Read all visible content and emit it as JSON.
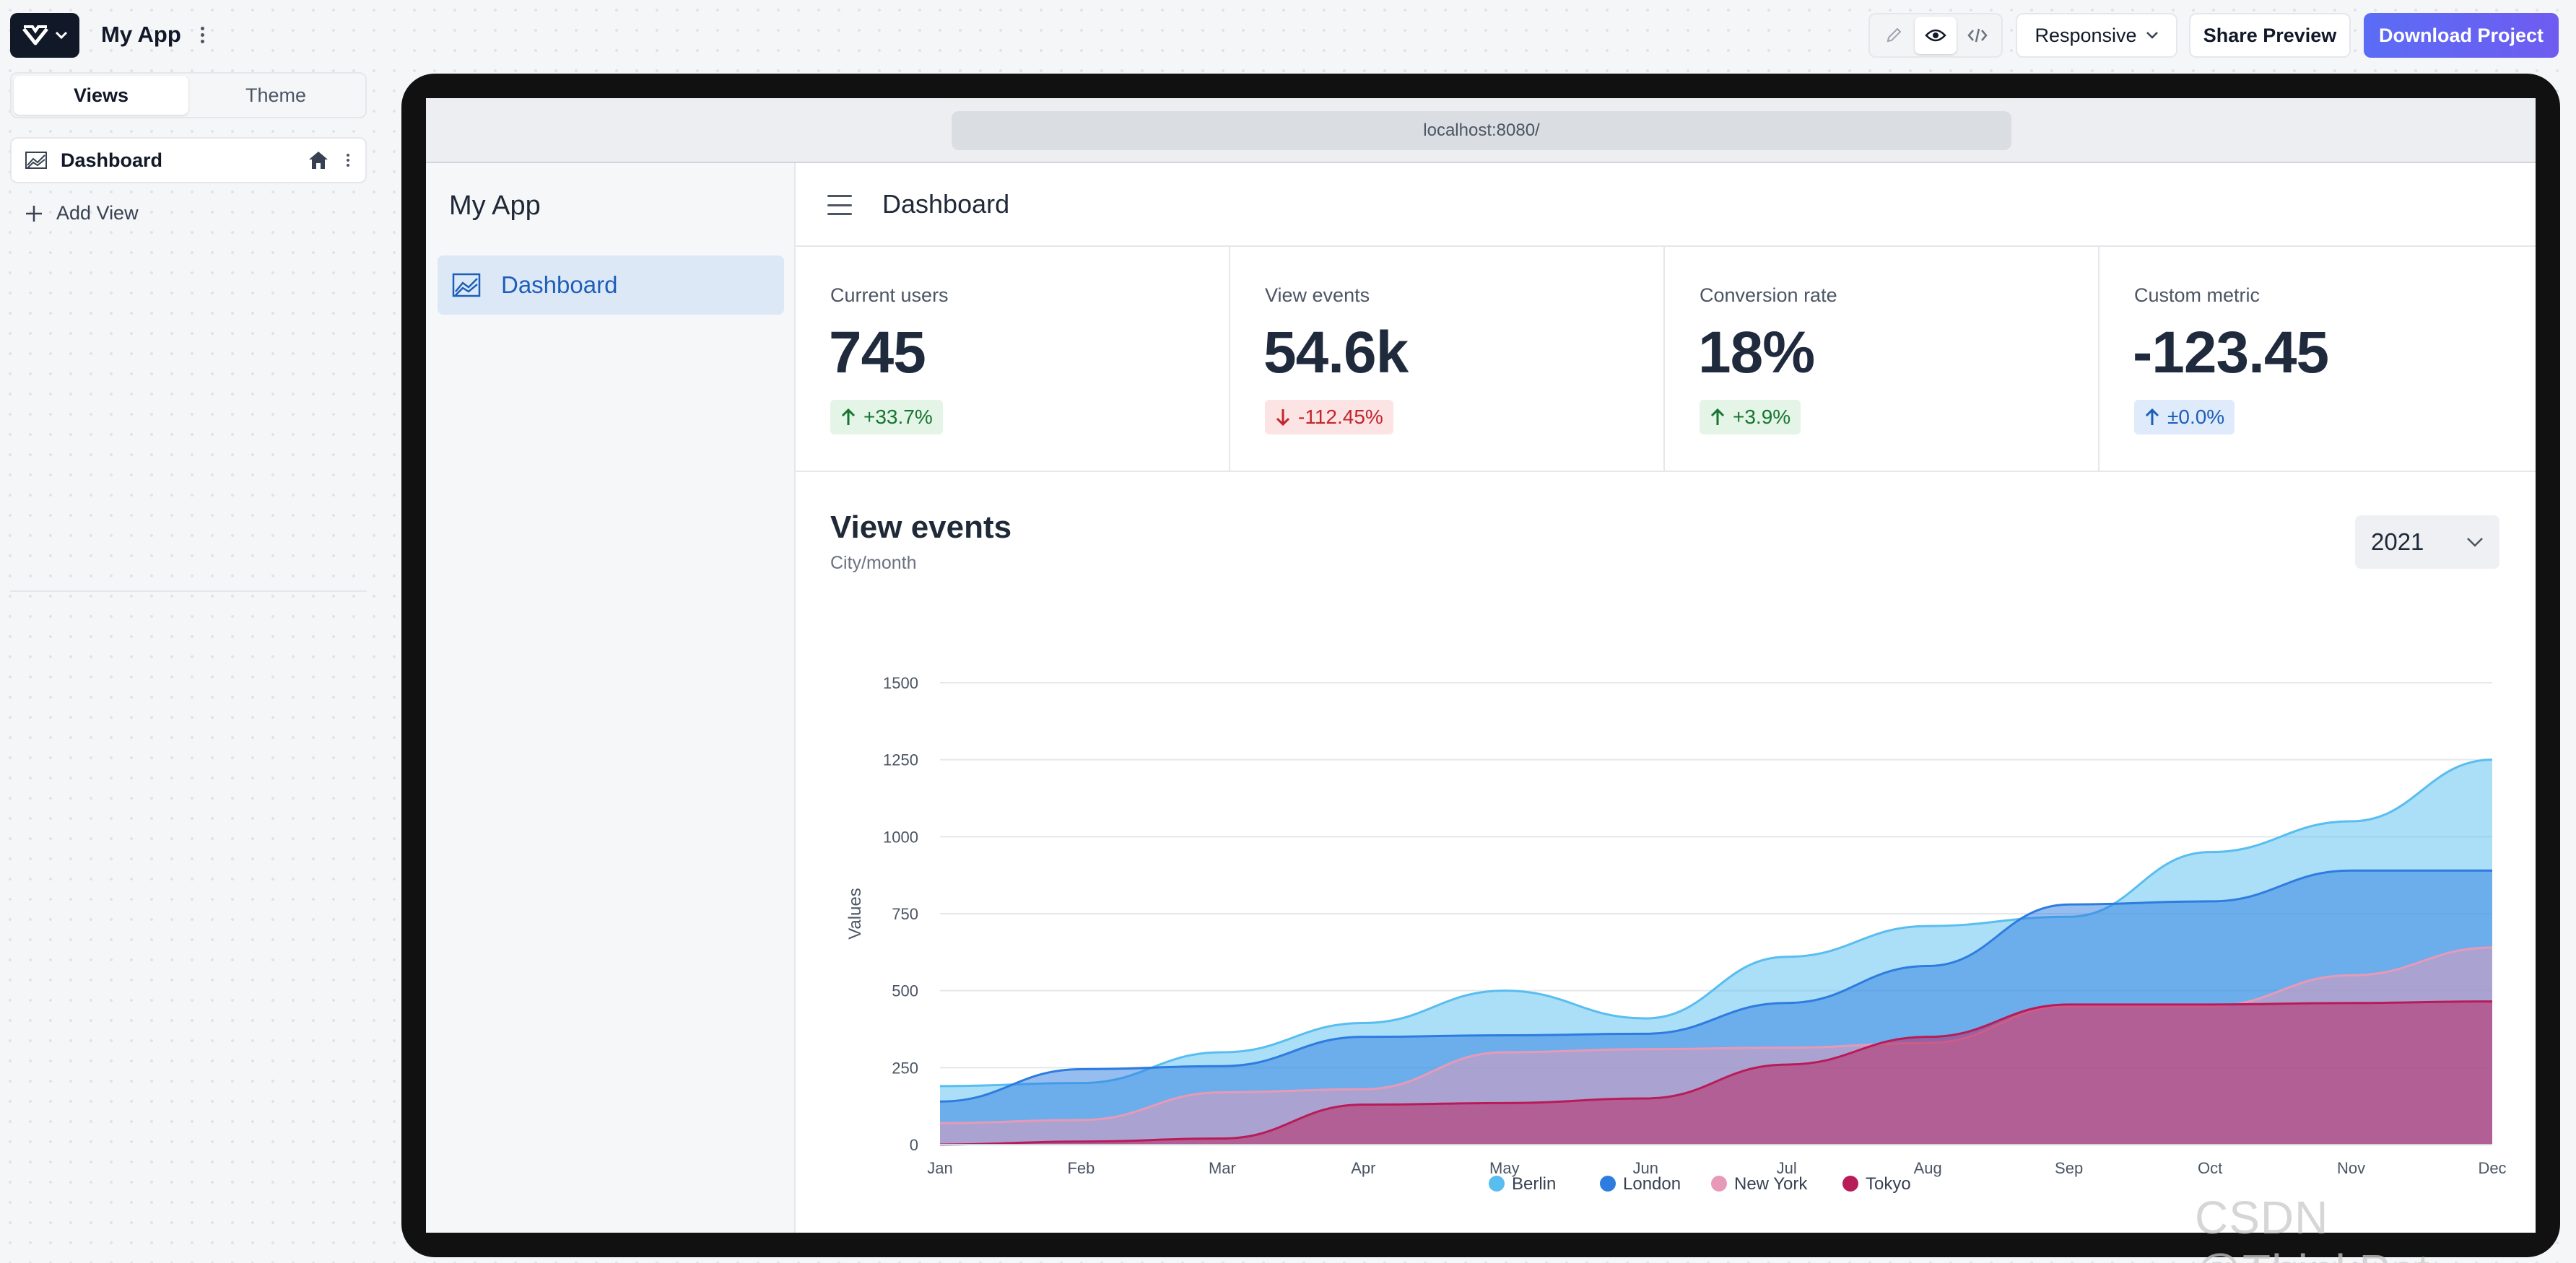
{
  "topbar": {
    "app_title": "My App",
    "view_mode_active": "preview",
    "responsive_label": "Responsive",
    "share_label": "Share Preview",
    "download_label": "Download Project"
  },
  "left_panel": {
    "tabs": [
      {
        "label": "Views",
        "active": true
      },
      {
        "label": "Theme",
        "active": false
      }
    ],
    "views": [
      {
        "label": "Dashboard",
        "is_home": true
      }
    ],
    "add_view_label": "Add View"
  },
  "preview": {
    "url": "localhost:8080/",
    "sidebar_title": "My App",
    "nav_items": [
      {
        "label": "Dashboard",
        "active": true
      }
    ],
    "page_title": "Dashboard",
    "metrics": [
      {
        "label": "Current users",
        "value": "745",
        "change": "+33.7%",
        "trend": "up"
      },
      {
        "label": "View events",
        "value": "54.6k",
        "change": "-112.45%",
        "trend": "down"
      },
      {
        "label": "Conversion rate",
        "value": "18%",
        "change": "+3.9%",
        "trend": "up"
      },
      {
        "label": "Custom metric",
        "value": "-123.45",
        "change": "±0.0%",
        "trend": "neutral"
      }
    ],
    "chart_section": {
      "title": "View events",
      "subtitle": "City/month",
      "year": "2021"
    }
  },
  "chart_data": {
    "type": "area",
    "title": "View events",
    "subtitle": "City/month",
    "xlabel": "",
    "ylabel": "Values",
    "categories": [
      "Jan",
      "Feb",
      "Mar",
      "Apr",
      "May",
      "Jun",
      "Jul",
      "Aug",
      "Sep",
      "Oct",
      "Nov",
      "Dec"
    ],
    "ylim": [
      0,
      1500
    ],
    "yticks": [
      0,
      250,
      500,
      750,
      1000,
      1250,
      1500
    ],
    "grid": true,
    "legend_position": "bottom-center",
    "series": [
      {
        "name": "Berlin",
        "color": "#58bdf0",
        "values": [
          190,
          200,
          300,
          395,
          500,
          410,
          610,
          710,
          740,
          950,
          1050,
          1250
        ]
      },
      {
        "name": "London",
        "color": "#2d7ce0",
        "values": [
          140,
          245,
          255,
          350,
          355,
          360,
          460,
          580,
          780,
          790,
          890,
          890
        ]
      },
      {
        "name": "New York",
        "color": "#e79ab8",
        "values": [
          70,
          80,
          170,
          180,
          300,
          310,
          315,
          330,
          450,
          450,
          550,
          640
        ]
      },
      {
        "name": "Tokyo",
        "color": "#b81c58",
        "values": [
          0,
          10,
          20,
          130,
          135,
          150,
          260,
          350,
          455,
          455,
          460,
          465
        ]
      }
    ]
  },
  "watermark": "CSDN @ThinkPet"
}
